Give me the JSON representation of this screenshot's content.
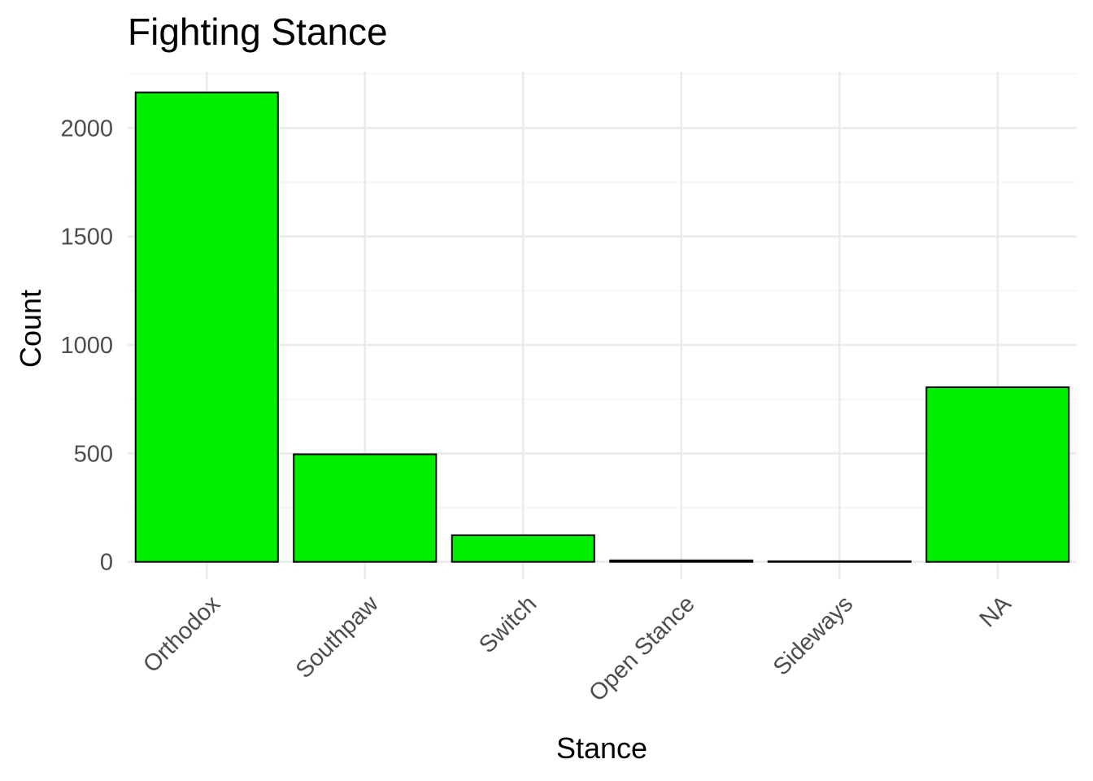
{
  "chart_data": {
    "type": "bar",
    "title": "Fighting Stance",
    "xlabel": "Stance",
    "ylabel": "Count",
    "categories": [
      "Orthodox",
      "Southpaw",
      "Switch",
      "Open Stance",
      "Sideways",
      "NA"
    ],
    "values": [
      2164,
      496,
      123,
      7,
      3,
      805
    ],
    "ylim": [
      -80,
      2260
    ],
    "yticks": [
      0,
      500,
      1000,
      1500,
      2000
    ],
    "grid": true,
    "bar_fill": "#00ee00",
    "bar_outline": "#000000",
    "legend": "none"
  }
}
